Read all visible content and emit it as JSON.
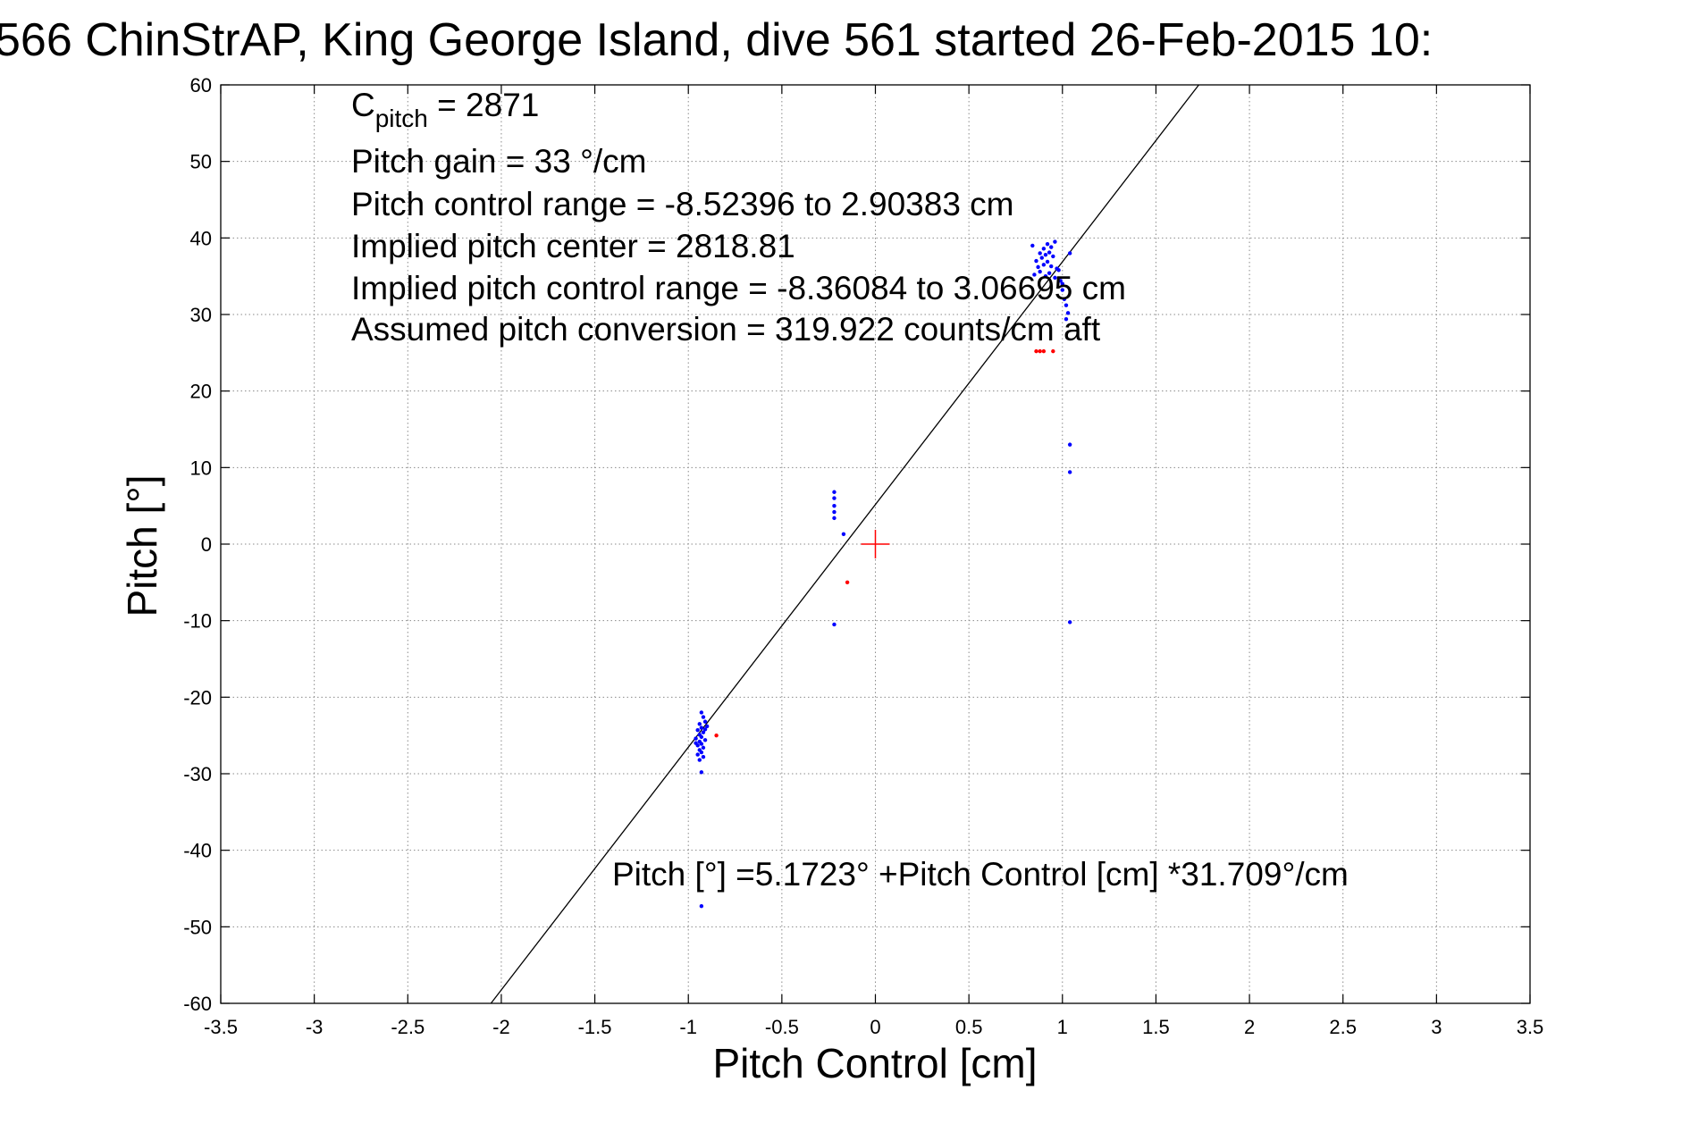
{
  "chart_data": {
    "type": "scatter",
    "title": "566 ChinStrAP, King George Island, dive 561 started 26-Feb-2015 10:",
    "xlabel": "Pitch Control [cm]",
    "ylabel": "Pitch [°]",
    "xlim": [
      -3.5,
      3.5
    ],
    "ylim": [
      -60,
      60
    ],
    "xticks": [
      "-3.5",
      "-3",
      "-2.5",
      "-2",
      "-1.5",
      "-1",
      "-0.5",
      "0",
      "0.5",
      "1",
      "1.5",
      "2",
      "2.5",
      "3",
      "3.5"
    ],
    "yticks": [
      "60",
      "50",
      "40",
      "30",
      "20",
      "10",
      "0",
      "-10",
      "-20",
      "-30",
      "-40",
      "-50",
      "-60"
    ],
    "grid": true,
    "colors": {
      "series_blue": "#0000ff",
      "series_red": "#ff0000",
      "fit_line": "#000000"
    },
    "fit": {
      "intercept": 5.1723,
      "slope": 31.709
    },
    "annotations": {
      "c_pitch_main": "C",
      "c_pitch_sub": "pitch",
      "c_pitch_value": " = 2871",
      "line2": "Pitch gain = 33 °/cm",
      "line3": "Pitch control range = -8.52396 to 2.90383 cm",
      "line4": "Implied pitch center = 2818.81",
      "line5": "Implied pitch control range = -8.36084 to 3.06695 cm",
      "line6": "Assumed pitch conversion = 319.922 counts/cm aft",
      "fit_equation": "Pitch [°] =5.1723° +Pitch Control [cm] *31.709°/cm"
    },
    "center_marker": {
      "x": 0,
      "y": 0
    },
    "blue_points": [
      [
        -0.93,
        -22.0
      ],
      [
        -0.92,
        -22.6
      ],
      [
        -0.91,
        -23.2
      ],
      [
        -0.94,
        -23.5
      ],
      [
        -0.93,
        -24.0
      ],
      [
        -0.95,
        -24.3
      ],
      [
        -0.92,
        -24.6
      ],
      [
        -0.94,
        -24.9
      ],
      [
        -0.93,
        -25.2
      ],
      [
        -0.96,
        -25.4
      ],
      [
        -0.91,
        -25.6
      ],
      [
        -0.94,
        -25.8
      ],
      [
        -0.93,
        -26.1
      ],
      [
        -0.95,
        -26.3
      ],
      [
        -0.92,
        -26.6
      ],
      [
        -0.94,
        -26.9
      ],
      [
        -0.93,
        -27.2
      ],
      [
        -0.95,
        -27.5
      ],
      [
        -0.92,
        -27.8
      ],
      [
        -0.94,
        -28.2
      ],
      [
        -0.9,
        -23.8
      ],
      [
        -0.96,
        -26.0
      ],
      [
        -0.91,
        -24.2
      ],
      [
        -0.93,
        -29.8
      ],
      [
        -0.93,
        -47.3
      ],
      [
        -0.22,
        6.8
      ],
      [
        -0.22,
        6.0
      ],
      [
        -0.22,
        5.0
      ],
      [
        -0.22,
        4.2
      ],
      [
        -0.22,
        3.4
      ],
      [
        -0.17,
        1.3
      ],
      [
        -0.22,
        -10.5
      ],
      [
        0.84,
        39.0
      ],
      [
        0.88,
        38.0
      ],
      [
        0.9,
        38.6
      ],
      [
        0.92,
        39.2
      ],
      [
        0.94,
        38.8
      ],
      [
        0.96,
        39.5
      ],
      [
        0.86,
        37.0
      ],
      [
        0.89,
        37.4
      ],
      [
        0.91,
        37.8
      ],
      [
        0.93,
        38.1
      ],
      [
        0.95,
        37.6
      ],
      [
        0.87,
        36.2
      ],
      [
        0.9,
        36.5
      ],
      [
        0.92,
        36.9
      ],
      [
        0.94,
        36.3
      ],
      [
        0.97,
        36.0
      ],
      [
        0.85,
        35.2
      ],
      [
        0.88,
        35.6
      ],
      [
        0.91,
        35.0
      ],
      [
        0.93,
        35.4
      ],
      [
        0.96,
        34.8
      ],
      [
        0.99,
        34.4
      ],
      [
        1.0,
        33.2
      ],
      [
        1.01,
        32.0
      ],
      [
        1.02,
        31.2
      ],
      [
        1.03,
        30.2
      ],
      [
        1.02,
        29.4
      ],
      [
        1.04,
        38.0
      ],
      [
        0.98,
        35.8
      ],
      [
        1.0,
        34.0
      ],
      [
        1.04,
        13.0
      ],
      [
        1.04,
        9.4
      ],
      [
        1.04,
        -10.2
      ]
    ],
    "red_points": [
      [
        0.86,
        25.2
      ],
      [
        0.88,
        25.2
      ],
      [
        0.9,
        25.2
      ],
      [
        0.95,
        25.2
      ],
      [
        -0.85,
        -25.0
      ],
      [
        -0.15,
        -5.0
      ]
    ]
  }
}
